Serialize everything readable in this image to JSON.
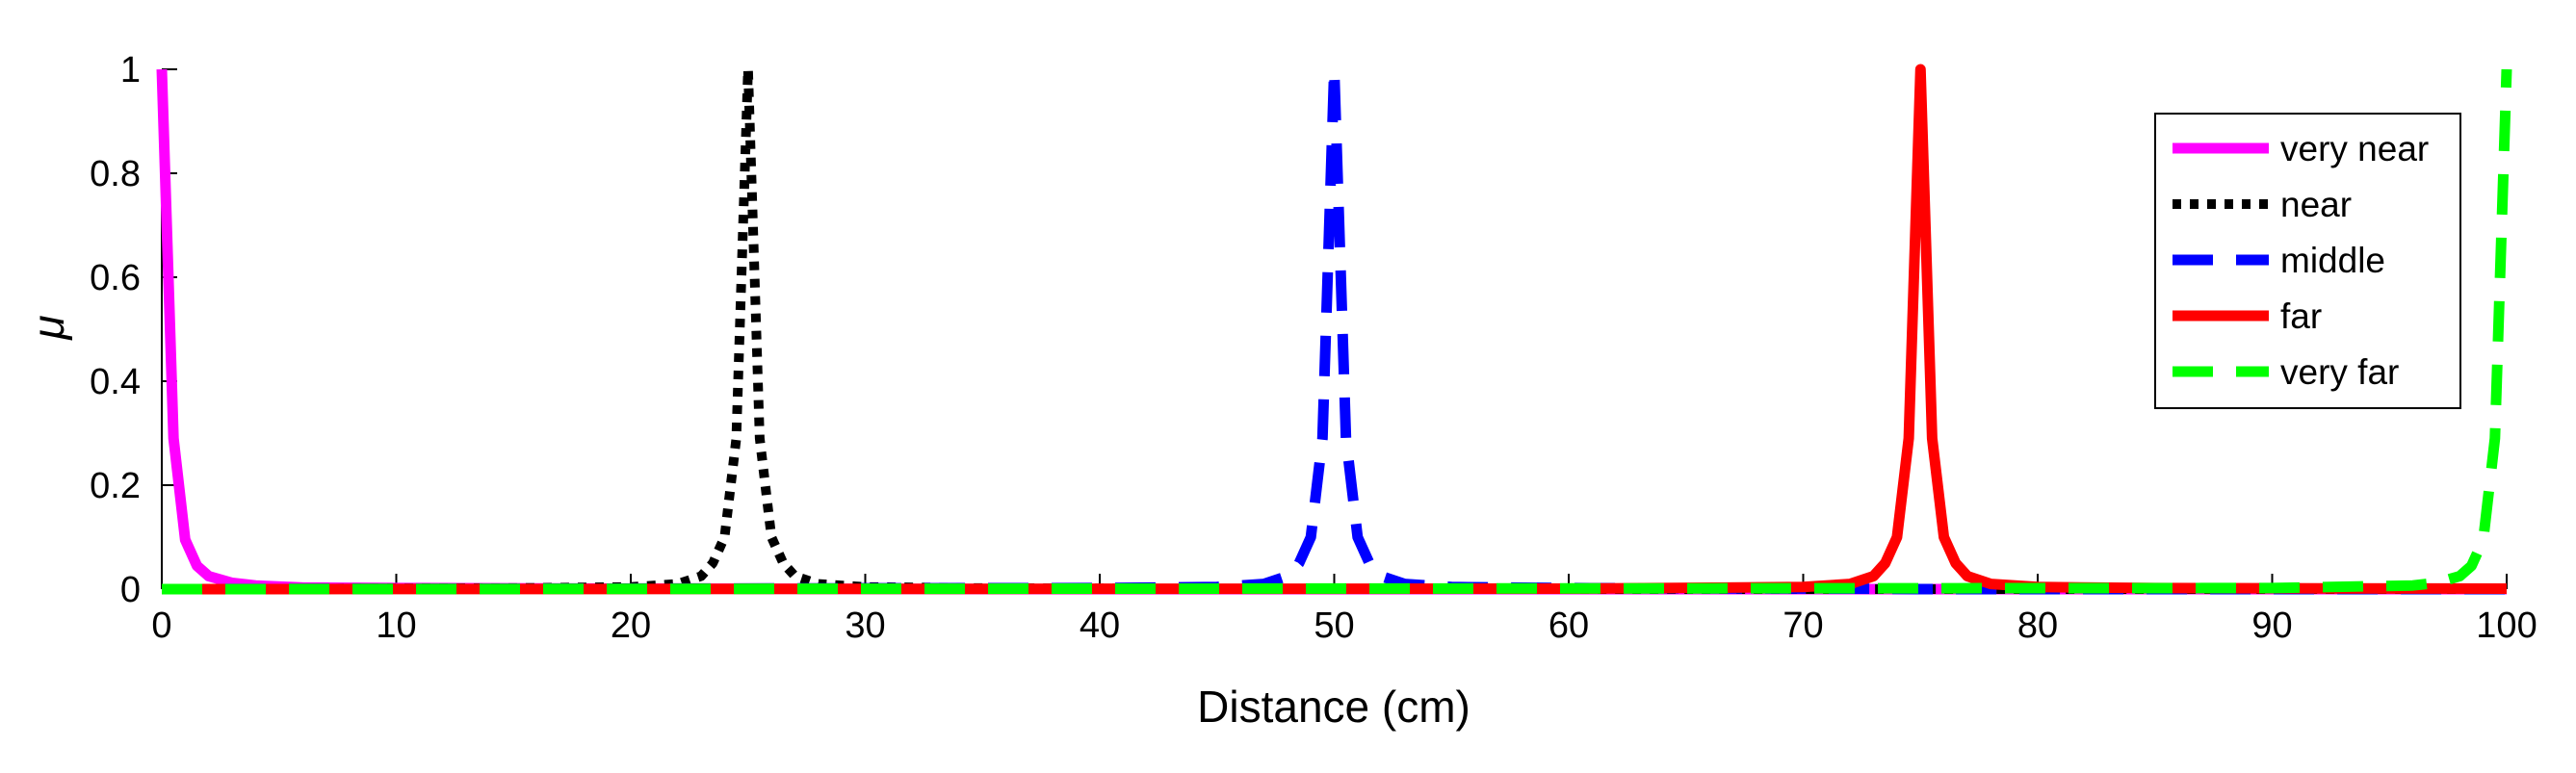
{
  "chart_data": {
    "type": "line",
    "title": "",
    "xlabel": "Distance (cm)",
    "ylabel": "μ",
    "xlim": [
      0,
      100
    ],
    "ylim": [
      0,
      1
    ],
    "xticks": [
      0,
      10,
      20,
      30,
      40,
      50,
      60,
      70,
      80,
      90,
      100
    ],
    "yticks": [
      0,
      0.2,
      0.4,
      0.6,
      0.8,
      1
    ],
    "ytick_labels": [
      "0",
      "0.2",
      "0.4",
      "0.6",
      "0.8",
      "1"
    ],
    "grid": false,
    "legend_position": "top-right",
    "series": [
      {
        "name": "very near",
        "color": "#ff00ff",
        "dash": "solid",
        "x": [
          0,
          0.5,
          1,
          1.5,
          2,
          3,
          4,
          6,
          10,
          20,
          40,
          100
        ],
        "y": [
          1,
          0.29,
          0.095,
          0.045,
          0.025,
          0.012,
          0.007,
          0.003,
          0.002,
          0.001,
          0,
          0
        ]
      },
      {
        "name": "near",
        "color": "#000000",
        "dash": "dotted",
        "x": [
          0,
          15,
          20,
          22,
          23,
          23.5,
          24,
          24.5,
          25,
          25.5,
          26,
          26.5,
          27,
          28,
          30,
          35,
          50,
          100
        ],
        "y": [
          0,
          0.002,
          0.004,
          0.01,
          0.025,
          0.05,
          0.1,
          0.29,
          1,
          0.29,
          0.1,
          0.05,
          0.025,
          0.01,
          0.004,
          0.002,
          0,
          0
        ]
      },
      {
        "name": "middle",
        "color": "#0000ff",
        "dash": "dashed",
        "x": [
          0,
          40,
          45,
          47,
          48,
          48.5,
          49,
          49.5,
          50,
          50.5,
          51,
          51.5,
          52,
          53,
          55,
          60,
          72,
          75,
          78,
          80,
          100
        ],
        "y": [
          0,
          0.002,
          0.004,
          0.01,
          0.025,
          0.05,
          0.1,
          0.29,
          1,
          0.29,
          0.1,
          0.05,
          0.025,
          0.01,
          0.004,
          0.002,
          0.001,
          0,
          0,
          0,
          0
        ]
      },
      {
        "name": "far",
        "color": "#ff0000",
        "dash": "solid",
        "x": [
          0,
          60,
          70,
          72,
          73,
          73.5,
          74,
          74.5,
          75,
          75.5,
          76,
          76.5,
          77,
          78,
          80,
          85,
          100
        ],
        "y": [
          0,
          0.001,
          0.004,
          0.01,
          0.025,
          0.05,
          0.1,
          0.29,
          1,
          0.29,
          0.1,
          0.05,
          0.025,
          0.01,
          0.004,
          0.002,
          0.001
        ]
      },
      {
        "name": "very far",
        "color": "#00ff00",
        "dash": "dashed",
        "x": [
          0,
          90,
          96,
          97,
          98,
          98.5,
          99,
          99.5,
          100
        ],
        "y": [
          0,
          0.002,
          0.007,
          0.012,
          0.025,
          0.045,
          0.095,
          0.29,
          1
        ]
      }
    ]
  }
}
